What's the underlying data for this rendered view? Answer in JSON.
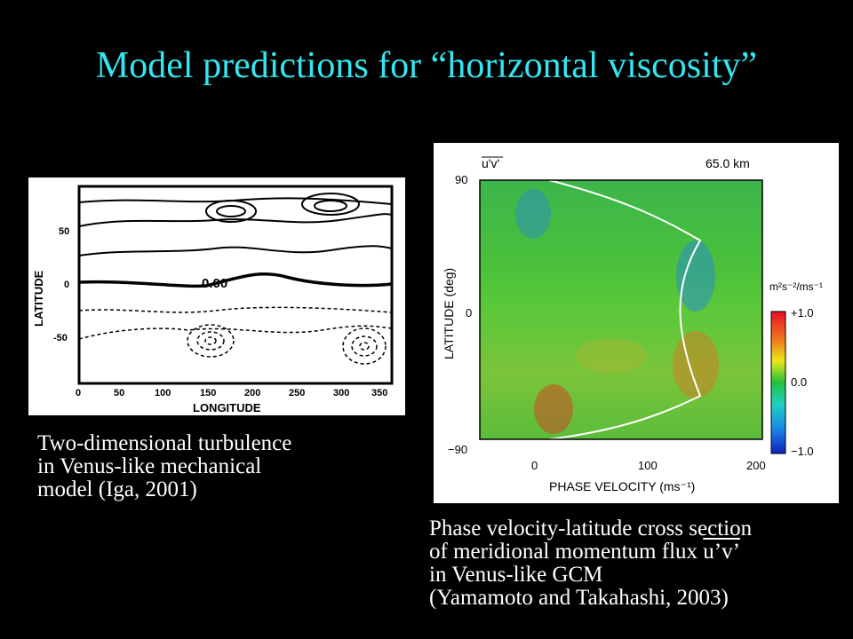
{
  "slide": {
    "title": "Model predictions for “horizontal viscosity”"
  },
  "left_figure": {
    "y_label": "LATITUDE",
    "x_label": "LONGITUDE",
    "y_ticks": [
      "50",
      "0",
      "-50"
    ],
    "x_ticks": [
      "0",
      "50",
      "100",
      "150",
      "200",
      "250",
      "300",
      "350"
    ],
    "contour_label": "0.00",
    "caption_lines": [
      "Two-dimensional turbulence",
      "in Venus-like mechanical",
      "model (Iga, 2001)"
    ]
  },
  "right_figure": {
    "corner_label": "u'v'",
    "altitude_label": "65.0 km",
    "y_label": "LATITUDE (deg)",
    "x_label": "PHASE VELOCITY (ms⁻¹)",
    "y_ticks": [
      "90",
      "0",
      "−90"
    ],
    "x_ticks": [
      "0",
      "100",
      "200"
    ],
    "colorbar_unit": "m²s⁻²/ms⁻¹",
    "colorbar_ticks": [
      "+1.0",
      "0.0",
      "−1.0"
    ],
    "caption_line1": "Phase velocity-latitude cross section",
    "caption_line2_prefix": "of meridional momentum flux ",
    "caption_line2_flux": "u’v’",
    "caption_line3": "in Venus-like GCM",
    "caption_line4": "(Yamamoto and Takahashi, 2003)"
  }
}
